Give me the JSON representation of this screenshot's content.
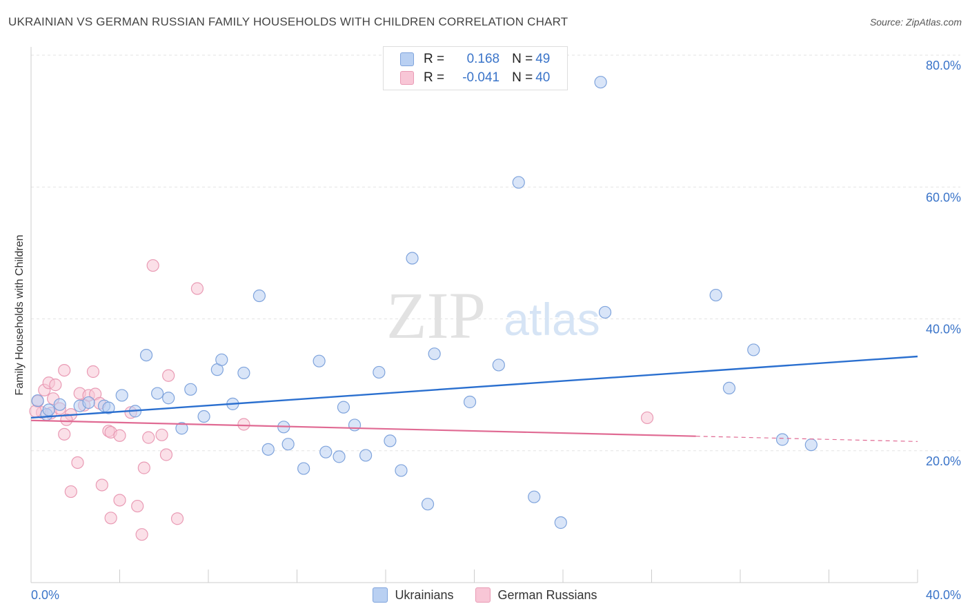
{
  "title": "UKRAINIAN VS GERMAN RUSSIAN FAMILY HOUSEHOLDS WITH CHILDREN CORRELATION CHART",
  "source": "Source: ZipAtlas.com",
  "watermark": {
    "zip": "ZIP",
    "atlas": "atlas"
  },
  "legend": {
    "r_label": "R =",
    "n_label": "N =",
    "rows": [
      {
        "r": "0.168",
        "n": "49"
      },
      {
        "r": "-0.041",
        "n": "40"
      }
    ]
  },
  "bottom_legend": [
    "Ukrainians",
    "German Russians"
  ],
  "colors": {
    "ukrainians_fill": "#b9d0f2",
    "ukrainians_stroke": "#7ea3dc",
    "ukrainians_line": "#2a6fcf",
    "german_russians_fill": "#f8c6d6",
    "german_russians_stroke": "#e99ab4",
    "german_russians_line": "#e06a93",
    "axis_text": "#3a74c9",
    "grid": "#e3e3e3"
  },
  "chart_data": {
    "type": "scatter",
    "title": "UKRAINIAN VS GERMAN RUSSIAN FAMILY HOUSEHOLDS WITH CHILDREN CORRELATION CHART",
    "xlabel": "",
    "ylabel": "Family Households with Children",
    "xlim": [
      0,
      40
    ],
    "ylim": [
      0,
      80
    ],
    "x_tick_labels": [
      "0.0%",
      "40.0%"
    ],
    "y_ticks": [
      20,
      40,
      60,
      80
    ],
    "y_tick_labels": [
      "20.0%",
      "40.0%",
      "60.0%",
      "80.0%"
    ],
    "grid": "horizontal dashed",
    "legend_position": "top-center",
    "series": [
      {
        "name": "Ukrainians",
        "r": 0.168,
        "n": 49,
        "trend": {
          "x": [
            0,
            40
          ],
          "y": [
            25.0,
            34.3
          ]
        },
        "points": [
          [
            0.3,
            27.6
          ],
          [
            0.7,
            25.5
          ],
          [
            1.3,
            27.0
          ],
          [
            2.2,
            26.8
          ],
          [
            3.3,
            26.8
          ],
          [
            3.5,
            26.5
          ],
          [
            4.1,
            28.4
          ],
          [
            4.7,
            26.0
          ],
          [
            5.2,
            34.5
          ],
          [
            5.7,
            28.7
          ],
          [
            6.2,
            28.0
          ],
          [
            6.8,
            23.4
          ],
          [
            7.2,
            29.3
          ],
          [
            7.8,
            25.2
          ],
          [
            8.4,
            32.3
          ],
          [
            8.6,
            33.8
          ],
          [
            9.1,
            27.1
          ],
          [
            9.6,
            31.8
          ],
          [
            10.3,
            43.5
          ],
          [
            10.7,
            20.2
          ],
          [
            11.4,
            23.6
          ],
          [
            11.6,
            21.0
          ],
          [
            12.3,
            17.3
          ],
          [
            13.0,
            33.6
          ],
          [
            13.3,
            19.8
          ],
          [
            13.9,
            19.1
          ],
          [
            14.1,
            26.6
          ],
          [
            14.6,
            23.9
          ],
          [
            15.1,
            19.3
          ],
          [
            15.7,
            31.9
          ],
          [
            16.2,
            21.5
          ],
          [
            16.7,
            17.0
          ],
          [
            17.2,
            49.2
          ],
          [
            17.9,
            11.9
          ],
          [
            18.2,
            34.7
          ],
          [
            19.8,
            27.4
          ],
          [
            21.1,
            33.0
          ],
          [
            22.0,
            60.7
          ],
          [
            22.7,
            13.0
          ],
          [
            23.9,
            9.1
          ],
          [
            25.7,
            75.9
          ],
          [
            25.9,
            41.0
          ],
          [
            30.9,
            43.6
          ],
          [
            31.5,
            29.5
          ],
          [
            32.6,
            35.3
          ],
          [
            33.9,
            21.7
          ],
          [
            35.2,
            20.9
          ],
          [
            0.8,
            26.2
          ],
          [
            2.6,
            27.3
          ]
        ]
      },
      {
        "name": "German Russians",
        "r": -0.041,
        "n": 40,
        "trend": {
          "x": [
            0,
            30
          ],
          "y": [
            24.6,
            22.2
          ]
        },
        "trend_dashed": {
          "x": [
            30,
            40
          ],
          "y": [
            22.2,
            21.4
          ]
        },
        "points": [
          [
            0.3,
            27.5
          ],
          [
            0.5,
            25.8
          ],
          [
            0.6,
            29.2
          ],
          [
            0.8,
            30.3
          ],
          [
            0.9,
            25.7
          ],
          [
            1.0,
            27.9
          ],
          [
            1.1,
            30.0
          ],
          [
            1.3,
            26.4
          ],
          [
            1.5,
            32.2
          ],
          [
            1.8,
            25.5
          ],
          [
            1.5,
            22.5
          ],
          [
            1.6,
            24.7
          ],
          [
            1.8,
            13.8
          ],
          [
            2.1,
            18.2
          ],
          [
            2.2,
            28.7
          ],
          [
            2.4,
            26.9
          ],
          [
            2.6,
            28.4
          ],
          [
            2.8,
            32.0
          ],
          [
            2.9,
            28.6
          ],
          [
            3.1,
            27.2
          ],
          [
            3.2,
            14.8
          ],
          [
            3.5,
            23.0
          ],
          [
            3.6,
            22.8
          ],
          [
            3.6,
            9.8
          ],
          [
            4.0,
            12.5
          ],
          [
            4.0,
            22.3
          ],
          [
            4.5,
            25.8
          ],
          [
            4.8,
            11.6
          ],
          [
            5.0,
            7.3
          ],
          [
            5.1,
            17.4
          ],
          [
            5.3,
            22.0
          ],
          [
            5.5,
            48.1
          ],
          [
            5.9,
            22.4
          ],
          [
            6.1,
            19.4
          ],
          [
            6.2,
            31.4
          ],
          [
            6.6,
            9.7
          ],
          [
            7.5,
            44.6
          ],
          [
            9.6,
            24.0
          ],
          [
            27.8,
            25.0
          ],
          [
            0.2,
            26.0
          ]
        ]
      }
    ]
  }
}
